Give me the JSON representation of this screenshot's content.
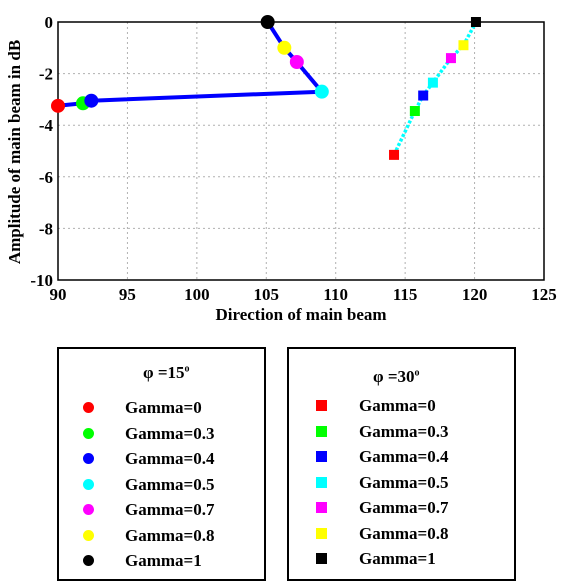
{
  "chart_data": {
    "type": "line",
    "xlabel": "Direction of main beam",
    "ylabel": "Amplitude of main beam in dB",
    "xlim": [
      90,
      125
    ],
    "ylim": [
      -10,
      0
    ],
    "xticks": [
      "90",
      "95",
      "100",
      "105",
      "110",
      "115",
      "120",
      "125"
    ],
    "yticks": [
      "0",
      "-2",
      "-4",
      "-6",
      "-8",
      "-10"
    ],
    "grid": true,
    "series": [
      {
        "name": "φ =15°",
        "line_color": "#0000ff",
        "marker": "circle",
        "points": [
          {
            "label": "Gamma=0",
            "x": 90.0,
            "y": -3.25,
            "color": "#ff0000"
          },
          {
            "label": "Gamma=0.3",
            "x": 91.8,
            "y": -3.15,
            "color": "#00ff00"
          },
          {
            "label": "Gamma=0.4",
            "x": 92.4,
            "y": -3.05,
            "color": "#0000ff"
          },
          {
            "label": "Gamma=0.5",
            "x": 109.0,
            "y": -2.7,
            "color": "#00ffff"
          },
          {
            "label": "Gamma=0.7",
            "x": 107.2,
            "y": -1.55,
            "color": "#ff00ff"
          },
          {
            "label": "Gamma=0.8",
            "x": 106.3,
            "y": -1.0,
            "color": "#ffff00"
          },
          {
            "label": "Gamma=1",
            "x": 105.1,
            "y": 0.0,
            "color": "#000000"
          }
        ]
      },
      {
        "name": "φ =30°",
        "line_color": "#00ffff",
        "marker": "square",
        "points": [
          {
            "label": "Gamma=0",
            "x": 114.2,
            "y": -5.15,
            "color": "#ff0000"
          },
          {
            "label": "Gamma=0.3",
            "x": 115.7,
            "y": -3.45,
            "color": "#00ff00"
          },
          {
            "label": "Gamma=0.4",
            "x": 116.3,
            "y": -2.85,
            "color": "#0000ff"
          },
          {
            "label": "Gamma=0.5",
            "x": 117.0,
            "y": -2.35,
            "color": "#00ffff"
          },
          {
            "label": "Gamma=0.7",
            "x": 118.3,
            "y": -1.4,
            "color": "#ff00ff"
          },
          {
            "label": "Gamma=0.8",
            "x": 119.2,
            "y": -0.9,
            "color": "#ffff00"
          },
          {
            "label": "Gamma=1",
            "x": 120.1,
            "y": 0.0,
            "color": "#000000"
          }
        ]
      }
    ]
  },
  "legend": {
    "left": {
      "title_main": "φ =15",
      "title_sup": "o",
      "items": [
        {
          "label": "Gamma=0",
          "color": "#ff0000"
        },
        {
          "label": "Gamma=0.3",
          "color": "#00ff00"
        },
        {
          "label": "Gamma=0.4",
          "color": "#0000ff"
        },
        {
          "label": "Gamma=0.5",
          "color": "#00ffff"
        },
        {
          "label": "Gamma=0.7",
          "color": "#ff00ff"
        },
        {
          "label": "Gamma=0.8",
          "color": "#ffff00"
        },
        {
          "label": "Gamma=1",
          "color": "#000000"
        }
      ]
    },
    "right": {
      "title_main": "φ =30",
      "title_sup": "o",
      "items": [
        {
          "label": "Gamma=0",
          "color": "#ff0000"
        },
        {
          "label": "Gamma=0.3",
          "color": "#00ff00"
        },
        {
          "label": "Gamma=0.4",
          "color": "#0000ff"
        },
        {
          "label": "Gamma=0.5",
          "color": "#00ffff"
        },
        {
          "label": "Gamma=0.7",
          "color": "#ff00ff"
        },
        {
          "label": "Gamma=0.8",
          "color": "#ffff00"
        },
        {
          "label": "Gamma=1",
          "color": "#000000"
        }
      ]
    }
  }
}
